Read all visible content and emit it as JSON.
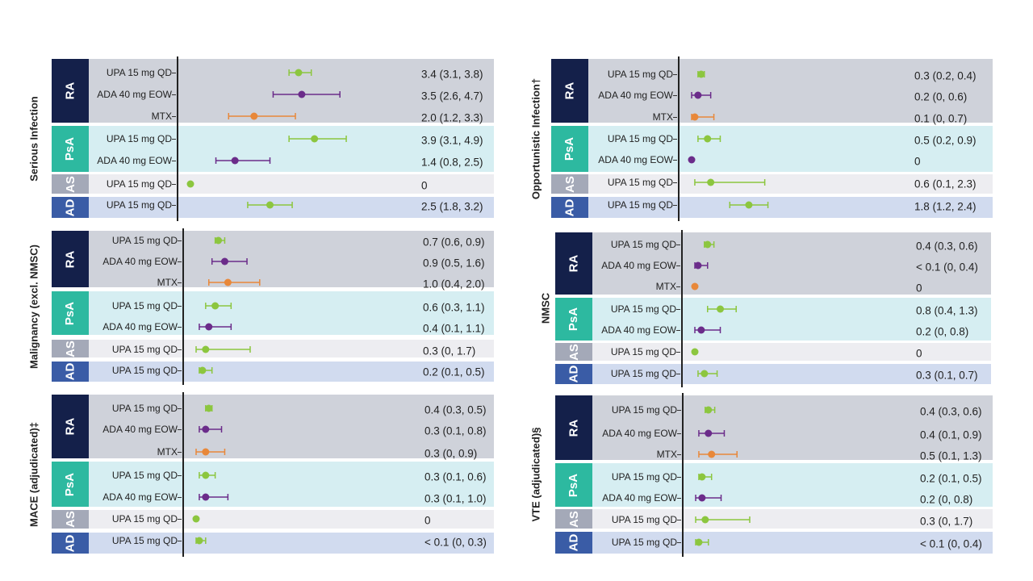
{
  "colors": {
    "UPA": "#8cc63f",
    "ADA": "#6b2c8a",
    "MTX": "#e8883a",
    "RA": "#14204a",
    "PsA": "#2db9a0",
    "AS": "#a4a9b8",
    "AD": "#3a5ca6",
    "RA_band": "#cfd2da",
    "PsA_band": "#d6eef2",
    "AS_band": "#ededf1",
    "AD_band": "#d1dbef"
  },
  "chart_data": [
    {
      "type": "forest",
      "title": "Serious Infection",
      "groups": [
        {
          "name": "RA",
          "rows": [
            {
              "label": "UPA 15 mg QD",
              "drug": "UPA",
              "est": 3.4,
              "lo": 3.1,
              "hi": 3.8,
              "text": "3.4 (3.1, 3.8)"
            },
            {
              "label": "ADA 40 mg EOW",
              "drug": "ADA",
              "est": 3.5,
              "lo": 2.6,
              "hi": 4.7,
              "text": "3.5 (2.6, 4.7)"
            },
            {
              "label": "MTX",
              "drug": "MTX",
              "est": 2.0,
              "lo": 1.2,
              "hi": 3.3,
              "text": "2.0 (1.2, 3.3)"
            }
          ]
        },
        {
          "name": "PsA",
          "rows": [
            {
              "label": "UPA 15 mg QD",
              "drug": "UPA",
              "est": 3.9,
              "lo": 3.1,
              "hi": 4.9,
              "text": "3.9 (3.1, 4.9)"
            },
            {
              "label": "ADA 40 mg EOW",
              "drug": "ADA",
              "est": 1.4,
              "lo": 0.8,
              "hi": 2.5,
              "text": "1.4 (0.8, 2.5)"
            }
          ]
        },
        {
          "name": "AS",
          "rows": [
            {
              "label": "UPA 15 mg QD",
              "drug": "UPA",
              "est": 0,
              "lo": null,
              "hi": null,
              "text": "0"
            }
          ]
        },
        {
          "name": "AD",
          "rows": [
            {
              "label": "UPA 15 mg QD",
              "drug": "UPA",
              "est": 2.5,
              "lo": 1.8,
              "hi": 3.2,
              "text": "2.5 (1.8, 3.2)"
            }
          ]
        }
      ]
    },
    {
      "type": "forest",
      "title": "Opportunistic Infection†",
      "groups": [
        {
          "name": "RA",
          "rows": [
            {
              "label": "UPA 15 mg QD",
              "drug": "UPA",
              "est": 0.3,
              "lo": 0.2,
              "hi": 0.4,
              "text": "0.3 (0.2, 0.4)"
            },
            {
              "label": "ADA 40 mg EOW",
              "drug": "ADA",
              "est": 0.2,
              "lo": 0,
              "hi": 0.6,
              "text": "0.2 (0, 0.6)"
            },
            {
              "label": "MTX",
              "drug": "MTX",
              "est": 0.1,
              "lo": 0,
              "hi": 0.7,
              "text": "0.1 (0, 0.7)"
            }
          ]
        },
        {
          "name": "PsA",
          "rows": [
            {
              "label": "UPA 15 mg QD",
              "drug": "UPA",
              "est": 0.5,
              "lo": 0.2,
              "hi": 0.9,
              "text": "0.5 (0.2, 0.9)"
            },
            {
              "label": "ADA 40 mg EOW",
              "drug": "ADA",
              "est": 0,
              "lo": null,
              "hi": null,
              "text": "0"
            }
          ]
        },
        {
          "name": "AS",
          "rows": [
            {
              "label": "UPA 15 mg QD",
              "drug": "UPA",
              "est": 0.6,
              "lo": 0.1,
              "hi": 2.3,
              "text": "0.6 (0.1, 2.3)"
            }
          ]
        },
        {
          "name": "AD",
          "rows": [
            {
              "label": "UPA 15 mg QD",
              "drug": "UPA",
              "est": 1.8,
              "lo": 1.2,
              "hi": 2.4,
              "text": "1.8 (1.2, 2.4)"
            }
          ]
        }
      ]
    },
    {
      "type": "forest",
      "title": "Malignancy (excl. NMSC)",
      "groups": [
        {
          "name": "RA",
          "rows": [
            {
              "label": "UPA 15 mg QD",
              "drug": "UPA",
              "est": 0.7,
              "lo": 0.6,
              "hi": 0.9,
              "text": "0.7 (0.6, 0.9)"
            },
            {
              "label": "ADA 40 mg EOW",
              "drug": "ADA",
              "est": 0.9,
              "lo": 0.5,
              "hi": 1.6,
              "text": "0.9 (0.5, 1.6)"
            },
            {
              "label": "MTX",
              "drug": "MTX",
              "est": 1.0,
              "lo": 0.4,
              "hi": 2.0,
              "text": "1.0 (0.4, 2.0)"
            }
          ]
        },
        {
          "name": "PsA",
          "rows": [
            {
              "label": "UPA 15 mg QD",
              "drug": "UPA",
              "est": 0.6,
              "lo": 0.3,
              "hi": 1.1,
              "text": "0.6 (0.3, 1.1)"
            },
            {
              "label": "ADA 40 mg EOW",
              "drug": "ADA",
              "est": 0.4,
              "lo": 0.1,
              "hi": 1.1,
              "text": "0.4 (0.1, 1.1)"
            }
          ]
        },
        {
          "name": "AS",
          "rows": [
            {
              "label": "UPA 15 mg QD",
              "drug": "UPA",
              "est": 0.3,
              "lo": 0,
              "hi": 1.7,
              "text": "0.3 (0, 1.7)"
            }
          ]
        },
        {
          "name": "AD",
          "rows": [
            {
              "label": "UPA 15 mg QD",
              "drug": "UPA",
              "est": 0.2,
              "lo": 0.1,
              "hi": 0.5,
              "text": "0.2 (0.1, 0.5)"
            }
          ]
        }
      ]
    },
    {
      "type": "forest",
      "title": "NMSC",
      "groups": [
        {
          "name": "RA",
          "rows": [
            {
              "label": "UPA 15 mg QD",
              "drug": "UPA",
              "est": 0.4,
              "lo": 0.3,
              "hi": 0.6,
              "text": "0.4 (0.3, 0.6)"
            },
            {
              "label": "ADA 40 mg EOW",
              "drug": "ADA",
              "est": 0.1,
              "lo": 0,
              "hi": 0.4,
              "text": "< 0.1 (0, 0.4)"
            },
            {
              "label": "MTX",
              "drug": "MTX",
              "est": 0,
              "lo": null,
              "hi": null,
              "text": "0"
            }
          ]
        },
        {
          "name": "PsA",
          "rows": [
            {
              "label": "UPA 15 mg QD",
              "drug": "UPA",
              "est": 0.8,
              "lo": 0.4,
              "hi": 1.3,
              "text": "0.8 (0.4, 1.3)"
            },
            {
              "label": "ADA 40 mg EOW",
              "drug": "ADA",
              "est": 0.2,
              "lo": 0,
              "hi": 0.8,
              "text": "0.2 (0, 0.8)"
            }
          ]
        },
        {
          "name": "AS",
          "rows": [
            {
              "label": "UPA 15 mg QD",
              "drug": "UPA",
              "est": 0,
              "lo": null,
              "hi": null,
              "text": "0"
            }
          ]
        },
        {
          "name": "AD",
          "rows": [
            {
              "label": "UPA 15 mg QD",
              "drug": "UPA",
              "est": 0.3,
              "lo": 0.1,
              "hi": 0.7,
              "text": "0.3 (0.1, 0.7)"
            }
          ]
        }
      ]
    },
    {
      "type": "forest",
      "title": "MACE (adjudicated)‡",
      "groups": [
        {
          "name": "RA",
          "rows": [
            {
              "label": "UPA 15 mg QD",
              "drug": "UPA",
              "est": 0.4,
              "lo": 0.3,
              "hi": 0.5,
              "text": "0.4 (0.3, 0.5)"
            },
            {
              "label": "ADA 40 mg EOW",
              "drug": "ADA",
              "est": 0.3,
              "lo": 0.1,
              "hi": 0.8,
              "text": "0.3 (0.1, 0.8)"
            },
            {
              "label": "MTX",
              "drug": "MTX",
              "est": 0.3,
              "lo": 0,
              "hi": 0.9,
              "text": "0.3 (0, 0.9)"
            }
          ]
        },
        {
          "name": "PsA",
          "rows": [
            {
              "label": "UPA 15 mg QD",
              "drug": "UPA",
              "est": 0.3,
              "lo": 0.1,
              "hi": 0.6,
              "text": "0.3 (0.1, 0.6)"
            },
            {
              "label": "ADA 40 mg EOW",
              "drug": "ADA",
              "est": 0.3,
              "lo": 0.1,
              "hi": 1.0,
              "text": "0.3 (0.1, 1.0)"
            }
          ]
        },
        {
          "name": "AS",
          "rows": [
            {
              "label": "UPA 15 mg QD",
              "drug": "UPA",
              "est": 0,
              "lo": null,
              "hi": null,
              "text": "0"
            }
          ]
        },
        {
          "name": "AD",
          "rows": [
            {
              "label": "UPA 15 mg QD",
              "drug": "UPA",
              "est": 0.1,
              "lo": 0,
              "hi": 0.3,
              "text": "< 0.1 (0, 0.3)"
            }
          ]
        }
      ]
    },
    {
      "type": "forest",
      "title": "VTE (adjudicated)§",
      "groups": [
        {
          "name": "RA",
          "rows": [
            {
              "label": "UPA 15 mg QD",
              "drug": "UPA",
              "est": 0.4,
              "lo": 0.3,
              "hi": 0.6,
              "text": "0.4 (0.3, 0.6)"
            },
            {
              "label": "ADA 40 mg EOW",
              "drug": "ADA",
              "est": 0.4,
              "lo": 0.1,
              "hi": 0.9,
              "text": "0.4 (0.1, 0.9)"
            },
            {
              "label": "MTX",
              "drug": "MTX",
              "est": 0.5,
              "lo": 0.1,
              "hi": 1.3,
              "text": "0.5 (0.1, 1.3)"
            }
          ]
        },
        {
          "name": "PsA",
          "rows": [
            {
              "label": "UPA 15 mg QD",
              "drug": "UPA",
              "est": 0.2,
              "lo": 0.1,
              "hi": 0.5,
              "text": "0.2 (0.1, 0.5)"
            },
            {
              "label": "ADA 40 mg EOW",
              "drug": "ADA",
              "est": 0.2,
              "lo": 0,
              "hi": 0.8,
              "text": "0.2 (0, 0.8)"
            }
          ]
        },
        {
          "name": "AS",
          "rows": [
            {
              "label": "UPA 15 mg QD",
              "drug": "UPA",
              "est": 0.3,
              "lo": 0,
              "hi": 1.7,
              "text": "0.3 (0, 1.7)"
            }
          ]
        },
        {
          "name": "AD",
          "rows": [
            {
              "label": "UPA 15 mg QD",
              "drug": "UPA",
              "est": 0.1,
              "lo": 0,
              "hi": 0.4,
              "text": "< 0.1 (0, 0.4)"
            }
          ]
        }
      ]
    }
  ]
}
